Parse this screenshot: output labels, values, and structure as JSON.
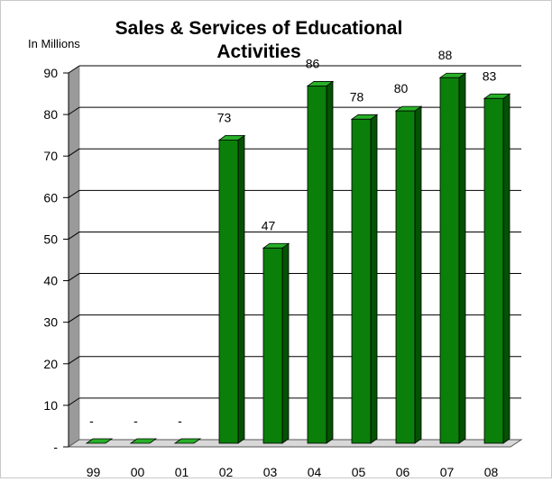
{
  "chart_data": {
    "type": "bar",
    "title": "Sales & Services of Educational Activities",
    "title_lines": [
      "Sales & Services of Educational",
      "Activities"
    ],
    "ylabel": "In Millions",
    "xlabel": "",
    "categories": [
      "99",
      "00",
      "01",
      "02",
      "03",
      "04",
      "05",
      "06",
      "07",
      "08"
    ],
    "values": [
      0,
      0,
      0,
      73,
      47,
      86,
      78,
      80,
      88,
      83
    ],
    "data_labels": [
      "-",
      "-",
      "-",
      "73",
      "47",
      "86",
      "78",
      "80",
      "88",
      "83"
    ],
    "ylim": [
      0,
      90
    ],
    "yticks": [
      0,
      10,
      20,
      30,
      40,
      50,
      60,
      70,
      80,
      90
    ],
    "ytick_labels": [
      "-",
      "10",
      "20",
      "30",
      "40",
      "50",
      "60",
      "70",
      "80",
      "90"
    ],
    "grid": true,
    "legend": "none",
    "colors": {
      "bar_front": "#0a7f0a",
      "bar_side": "#045204",
      "bar_top": "#28b028",
      "wall": "#9a9a9a",
      "floor": "#d8d8d8",
      "grid": "#000000"
    }
  }
}
